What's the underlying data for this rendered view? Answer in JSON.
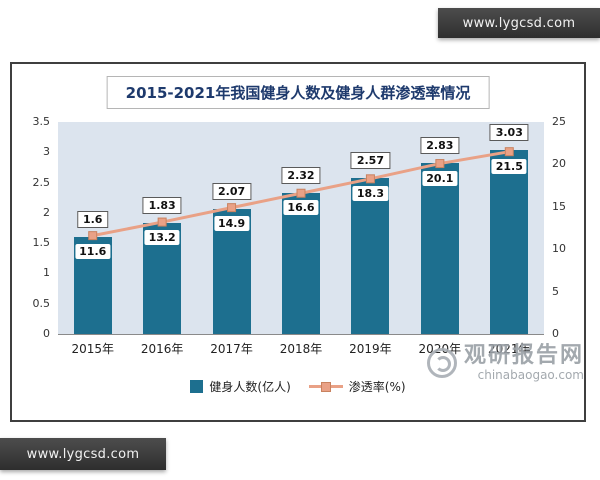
{
  "ribbons": {
    "top_right": "www.lygcsd.com",
    "bottom_left": "www.lygcsd.com"
  },
  "watermark": {
    "name": "观研报告网",
    "domain": "chinabaogao.com"
  },
  "chart_data": {
    "type": "bar",
    "subtype": "combo-bar-line",
    "title": "2015-2021年我国健身人数及健身人群渗透率情况",
    "categories": [
      "2015年",
      "2016年",
      "2017年",
      "2018年",
      "2019年",
      "2020年",
      "2021年"
    ],
    "series": [
      {
        "name": "健身人数(亿人)",
        "kind": "bar",
        "axis": "left",
        "color": "#1d6f8f",
        "values": [
          1.6,
          1.83,
          2.07,
          2.32,
          2.57,
          2.83,
          3.03
        ]
      },
      {
        "name": "渗透率(%)",
        "kind": "line",
        "axis": "right",
        "color": "#e9a186",
        "values": [
          11.6,
          13.2,
          14.9,
          16.6,
          18.3,
          20.1,
          21.5
        ]
      }
    ],
    "left_axis": {
      "min": 0,
      "max": 3.5,
      "ticks": [
        3.5,
        3,
        2.5,
        2,
        1.5,
        1,
        0.5,
        0
      ]
    },
    "right_axis": {
      "min": 0,
      "max": 25,
      "ticks": [
        25,
        20,
        15,
        10,
        5,
        0
      ]
    },
    "legend_position": "bottom",
    "grid": false,
    "plot_background": "#dce4ee"
  }
}
